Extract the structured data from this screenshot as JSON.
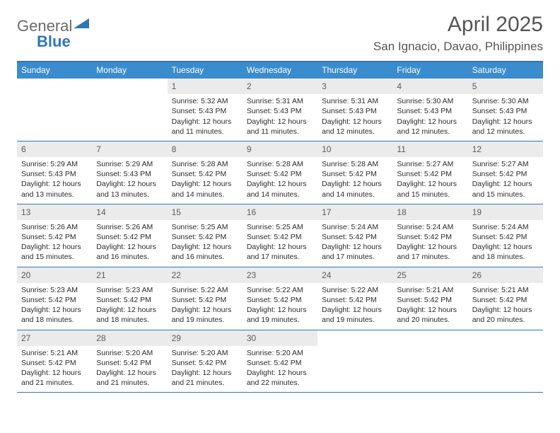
{
  "logo": {
    "word1": "General",
    "word2": "Blue",
    "shape_color": "#2f76b5",
    "text1_color": "#6a6a6a",
    "text2_color": "#2f76b5"
  },
  "title": "April 2025",
  "location": "San Ignacio, Davao, Philippines",
  "colors": {
    "header_bar": "#3b8ccc",
    "rule": "#2f76b5",
    "daynum_bg": "#ebebeb"
  },
  "weekdays": [
    "Sunday",
    "Monday",
    "Tuesday",
    "Wednesday",
    "Thursday",
    "Friday",
    "Saturday"
  ],
  "weeks": [
    [
      {
        "n": "",
        "sr": "",
        "ss": "",
        "dl": ""
      },
      {
        "n": "",
        "sr": "",
        "ss": "",
        "dl": ""
      },
      {
        "n": "1",
        "sr": "5:32 AM",
        "ss": "5:43 PM",
        "dl": "12 hours and 11 minutes."
      },
      {
        "n": "2",
        "sr": "5:31 AM",
        "ss": "5:43 PM",
        "dl": "12 hours and 11 minutes."
      },
      {
        "n": "3",
        "sr": "5:31 AM",
        "ss": "5:43 PM",
        "dl": "12 hours and 12 minutes."
      },
      {
        "n": "4",
        "sr": "5:30 AM",
        "ss": "5:43 PM",
        "dl": "12 hours and 12 minutes."
      },
      {
        "n": "5",
        "sr": "5:30 AM",
        "ss": "5:43 PM",
        "dl": "12 hours and 12 minutes."
      }
    ],
    [
      {
        "n": "6",
        "sr": "5:29 AM",
        "ss": "5:43 PM",
        "dl": "12 hours and 13 minutes."
      },
      {
        "n": "7",
        "sr": "5:29 AM",
        "ss": "5:43 PM",
        "dl": "12 hours and 13 minutes."
      },
      {
        "n": "8",
        "sr": "5:28 AM",
        "ss": "5:42 PM",
        "dl": "12 hours and 14 minutes."
      },
      {
        "n": "9",
        "sr": "5:28 AM",
        "ss": "5:42 PM",
        "dl": "12 hours and 14 minutes."
      },
      {
        "n": "10",
        "sr": "5:28 AM",
        "ss": "5:42 PM",
        "dl": "12 hours and 14 minutes."
      },
      {
        "n": "11",
        "sr": "5:27 AM",
        "ss": "5:42 PM",
        "dl": "12 hours and 15 minutes."
      },
      {
        "n": "12",
        "sr": "5:27 AM",
        "ss": "5:42 PM",
        "dl": "12 hours and 15 minutes."
      }
    ],
    [
      {
        "n": "13",
        "sr": "5:26 AM",
        "ss": "5:42 PM",
        "dl": "12 hours and 15 minutes."
      },
      {
        "n": "14",
        "sr": "5:26 AM",
        "ss": "5:42 PM",
        "dl": "12 hours and 16 minutes."
      },
      {
        "n": "15",
        "sr": "5:25 AM",
        "ss": "5:42 PM",
        "dl": "12 hours and 16 minutes."
      },
      {
        "n": "16",
        "sr": "5:25 AM",
        "ss": "5:42 PM",
        "dl": "12 hours and 17 minutes."
      },
      {
        "n": "17",
        "sr": "5:24 AM",
        "ss": "5:42 PM",
        "dl": "12 hours and 17 minutes."
      },
      {
        "n": "18",
        "sr": "5:24 AM",
        "ss": "5:42 PM",
        "dl": "12 hours and 17 minutes."
      },
      {
        "n": "19",
        "sr": "5:24 AM",
        "ss": "5:42 PM",
        "dl": "12 hours and 18 minutes."
      }
    ],
    [
      {
        "n": "20",
        "sr": "5:23 AM",
        "ss": "5:42 PM",
        "dl": "12 hours and 18 minutes."
      },
      {
        "n": "21",
        "sr": "5:23 AM",
        "ss": "5:42 PM",
        "dl": "12 hours and 18 minutes."
      },
      {
        "n": "22",
        "sr": "5:22 AM",
        "ss": "5:42 PM",
        "dl": "12 hours and 19 minutes."
      },
      {
        "n": "23",
        "sr": "5:22 AM",
        "ss": "5:42 PM",
        "dl": "12 hours and 19 minutes."
      },
      {
        "n": "24",
        "sr": "5:22 AM",
        "ss": "5:42 PM",
        "dl": "12 hours and 19 minutes."
      },
      {
        "n": "25",
        "sr": "5:21 AM",
        "ss": "5:42 PM",
        "dl": "12 hours and 20 minutes."
      },
      {
        "n": "26",
        "sr": "5:21 AM",
        "ss": "5:42 PM",
        "dl": "12 hours and 20 minutes."
      }
    ],
    [
      {
        "n": "27",
        "sr": "5:21 AM",
        "ss": "5:42 PM",
        "dl": "12 hours and 21 minutes."
      },
      {
        "n": "28",
        "sr": "5:20 AM",
        "ss": "5:42 PM",
        "dl": "12 hours and 21 minutes."
      },
      {
        "n": "29",
        "sr": "5:20 AM",
        "ss": "5:42 PM",
        "dl": "12 hours and 21 minutes."
      },
      {
        "n": "30",
        "sr": "5:20 AM",
        "ss": "5:42 PM",
        "dl": "12 hours and 22 minutes."
      },
      {
        "n": "",
        "sr": "",
        "ss": "",
        "dl": ""
      },
      {
        "n": "",
        "sr": "",
        "ss": "",
        "dl": ""
      },
      {
        "n": "",
        "sr": "",
        "ss": "",
        "dl": ""
      }
    ]
  ],
  "labels": {
    "sunrise": "Sunrise: ",
    "sunset": "Sunset: ",
    "daylight": "Daylight: "
  }
}
